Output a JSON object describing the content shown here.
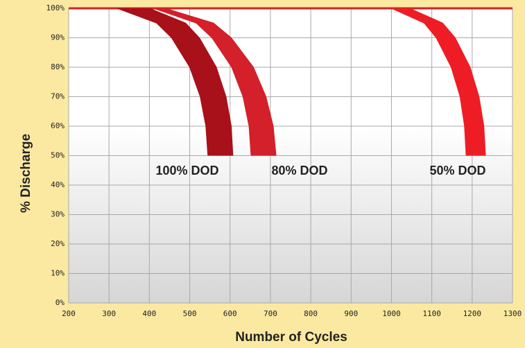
{
  "chart_data": {
    "type": "band",
    "xlabel": "Number of Cycles",
    "ylabel": "% Discharge",
    "xlim": [
      200,
      1300
    ],
    "xticks": [
      200,
      300,
      400,
      500,
      600,
      700,
      800,
      900,
      1000,
      1100,
      1200,
      1300
    ],
    "ylim": [
      0,
      100
    ],
    "yticks": [
      {
        "value": 0,
        "label": "0%"
      },
      {
        "value": 10,
        "label": "10%"
      },
      {
        "value": 20,
        "label": "20%"
      },
      {
        "value": 30,
        "label": "30%"
      },
      {
        "value": 40,
        "label": "40%"
      },
      {
        "value": 50,
        "label": "50%"
      },
      {
        "value": 60,
        "label": "60%"
      },
      {
        "value": 70,
        "label": "70%"
      },
      {
        "value": 80,
        "label": "80%"
      },
      {
        "value": 90,
        "label": "90%"
      },
      {
        "value": 100,
        "label": "100%"
      }
    ],
    "grid": true,
    "series": [
      {
        "name": "100% DOD",
        "color": "#a8101a",
        "values": [
          100,
          95,
          90,
          80,
          70,
          60,
          50
        ],
        "x_left": [
          320,
          418,
          455,
          500,
          526,
          540,
          545
        ],
        "x_right": [
          400,
          490,
          524,
          566,
          590,
          603,
          607
        ]
      },
      {
        "name": "80% DOD",
        "color": "#d3202a",
        "values": [
          100,
          95,
          90,
          80,
          70,
          60,
          50
        ],
        "x_left": [
          410,
          516,
          555,
          604,
          632,
          647,
          652
        ],
        "x_right": [
          440,
          559,
          603,
          658,
          689,
          707,
          714
        ]
      },
      {
        "name": "50% DOD",
        "color": "#ee1d25",
        "values": [
          100,
          95,
          90,
          80,
          70,
          60,
          50
        ],
        "x_left": [
          1000,
          1081,
          1111,
          1148,
          1170,
          1181,
          1185
        ],
        "x_right": [
          1045,
          1127,
          1158,
          1195,
          1217,
          1229,
          1233
        ]
      }
    ]
  }
}
